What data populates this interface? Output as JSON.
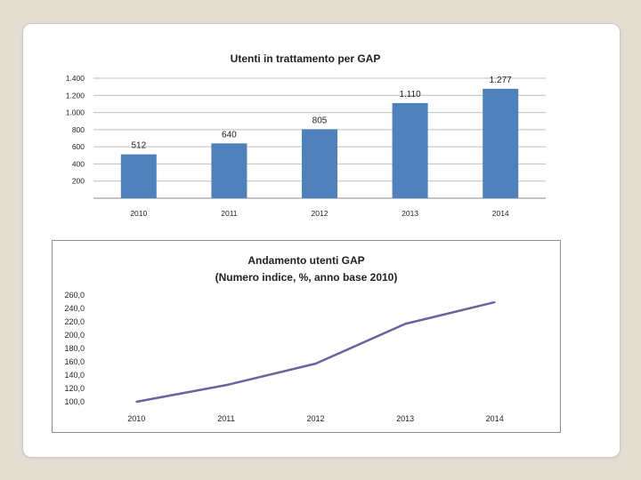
{
  "colors": {
    "bar": "#4f81bd",
    "line": "#6b63a0",
    "grid": "#bfbfbf",
    "axis": "#888888"
  },
  "chart_data": [
    {
      "type": "bar",
      "title": "Utenti in trattamento per GAP",
      "categories": [
        "2010",
        "2011",
        "2012",
        "2013",
        "2014"
      ],
      "values": [
        512,
        640,
        805,
        1110,
        1277
      ],
      "value_labels": [
        "512",
        "640",
        "805",
        "1.110",
        "1.277"
      ],
      "yticks": [
        200,
        400,
        600,
        800,
        1000,
        1200,
        1400
      ],
      "ytick_labels": [
        "200",
        "400",
        "600",
        "800",
        "1.000",
        "1.200",
        "1.400"
      ],
      "ylim": [
        0,
        1400
      ],
      "grid": true,
      "xlabel": "",
      "ylabel": ""
    },
    {
      "type": "line",
      "title_lines": [
        "Andamento utenti GAP",
        "(Numero indice, %, anno base 2010)"
      ],
      "categories": [
        "2010",
        "2011",
        "2012",
        "2013",
        "2014"
      ],
      "values": [
        100.0,
        125.0,
        157.2,
        216.8,
        249.4
      ],
      "yticks": [
        100,
        120,
        140,
        160,
        180,
        200,
        220,
        240,
        260
      ],
      "ytick_labels": [
        "100,0",
        "120,0",
        "140,0",
        "160,0",
        "180,0",
        "200,0",
        "220,0",
        "240,0",
        "260,0"
      ],
      "ylim": [
        100,
        260
      ],
      "grid": false,
      "xlabel": "",
      "ylabel": ""
    }
  ]
}
